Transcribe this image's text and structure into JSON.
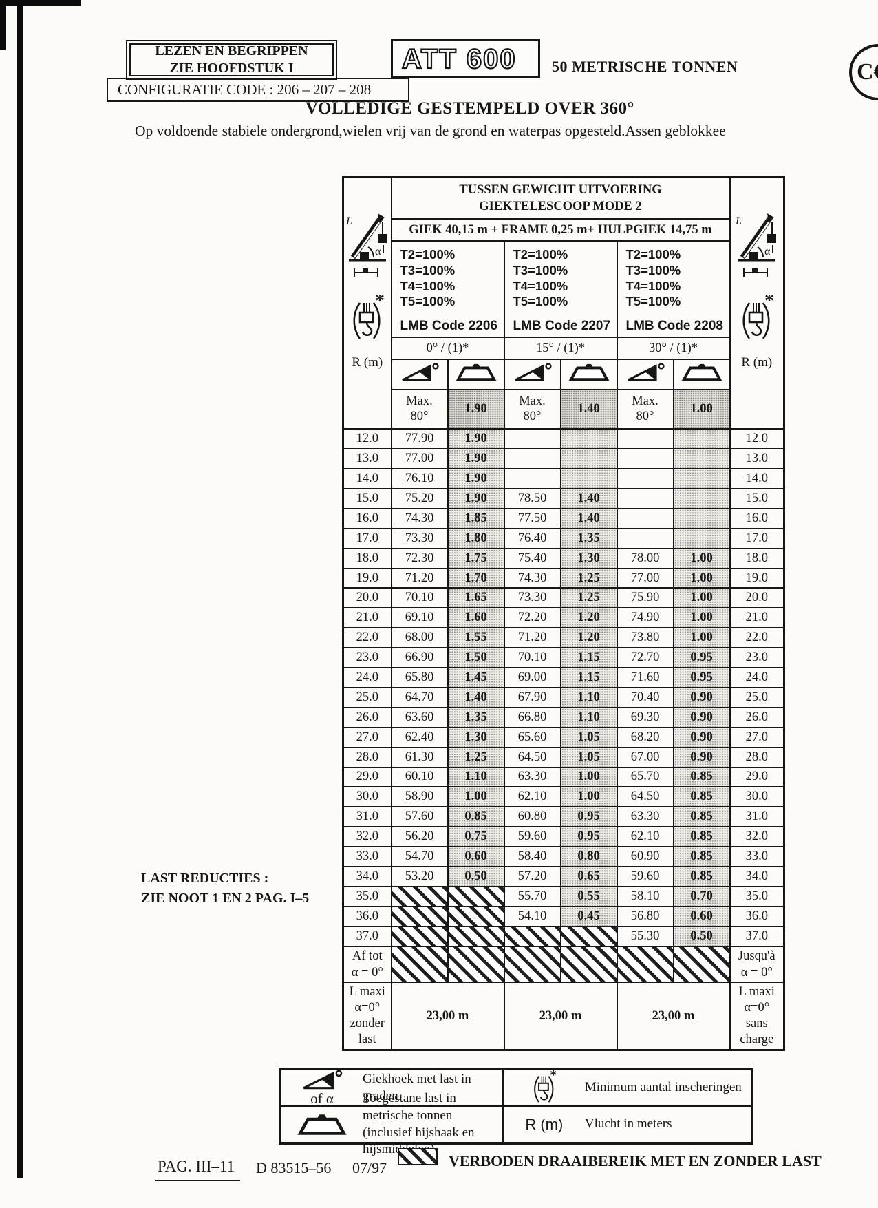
{
  "header": {
    "read_box": "LEZEN EN BEGRIPPEN\nZIE HOOFDSTUK I",
    "model": "ATT 600",
    "capacity": "50 METRISCHE TONNEN",
    "ce_mark": "C€",
    "config_code": "CONFIGURATIE CODE : 206 – 207 – 208",
    "title": "VOLLEDIGE GESTEMPELD OVER 360°",
    "subtitle": "Op voldoende stabiele ondergrond,wielen vrij van de grond en waterpas opgesteld.Assen geblokkee"
  },
  "table": {
    "title": "TUSSEN GEWICHT UITVOERING\nGIEKTELESCOOP MODE 2",
    "boom_config": "GIEK 40,15 m + FRAME 0,25 m+ HULPGIEK 14,75 m",
    "r_label": "R (m)",
    "max_label": "Max.\n80°",
    "groups": [
      {
        "telescope": "T2=100%\nT3=100%\nT4=100%\nT5=100%",
        "lmb": "LMB Code 2206",
        "angle": "0° / (1)*",
        "load_header": "1.90"
      },
      {
        "telescope": "T2=100%\nT3=100%\nT4=100%\nT5=100%",
        "lmb": "LMB Code 2207",
        "angle": "15° / (1)*",
        "load_header": "1.40"
      },
      {
        "telescope": "T2=100%\nT3=100%\nT4=100%\nT5=100%",
        "lmb": "LMB Code 2208",
        "angle": "30° / (1)*",
        "load_header": "1.00"
      }
    ],
    "rows": [
      {
        "r": "12.0",
        "c": [
          "77.90",
          "1.90",
          "",
          "",
          "",
          ""
        ]
      },
      {
        "r": "13.0",
        "c": [
          "77.00",
          "1.90",
          "",
          "",
          "",
          ""
        ]
      },
      {
        "r": "14.0",
        "c": [
          "76.10",
          "1.90",
          "",
          "",
          "",
          ""
        ]
      },
      {
        "r": "15.0",
        "c": [
          "75.20",
          "1.90",
          "78.50",
          "1.40",
          "",
          ""
        ]
      },
      {
        "r": "16.0",
        "c": [
          "74.30",
          "1.85",
          "77.50",
          "1.40",
          "",
          ""
        ]
      },
      {
        "r": "17.0",
        "c": [
          "73.30",
          "1.80",
          "76.40",
          "1.35",
          "",
          ""
        ]
      },
      {
        "r": "18.0",
        "c": [
          "72.30",
          "1.75",
          "75.40",
          "1.30",
          "78.00",
          "1.00"
        ]
      },
      {
        "r": "19.0",
        "c": [
          "71.20",
          "1.70",
          "74.30",
          "1.25",
          "77.00",
          "1.00"
        ]
      },
      {
        "r": "20.0",
        "c": [
          "70.10",
          "1.65",
          "73.30",
          "1.25",
          "75.90",
          "1.00"
        ]
      },
      {
        "r": "21.0",
        "c": [
          "69.10",
          "1.60",
          "72.20",
          "1.20",
          "74.90",
          "1.00"
        ]
      },
      {
        "r": "22.0",
        "c": [
          "68.00",
          "1.55",
          "71.20",
          "1.20",
          "73.80",
          "1.00"
        ]
      },
      {
        "r": "23.0",
        "c": [
          "66.90",
          "1.50",
          "70.10",
          "1.15",
          "72.70",
          "0.95"
        ]
      },
      {
        "r": "24.0",
        "c": [
          "65.80",
          "1.45",
          "69.00",
          "1.15",
          "71.60",
          "0.95"
        ]
      },
      {
        "r": "25.0",
        "c": [
          "64.70",
          "1.40",
          "67.90",
          "1.10",
          "70.40",
          "0.90"
        ]
      },
      {
        "r": "26.0",
        "c": [
          "63.60",
          "1.35",
          "66.80",
          "1.10",
          "69.30",
          "0.90"
        ]
      },
      {
        "r": "27.0",
        "c": [
          "62.40",
          "1.30",
          "65.60",
          "1.05",
          "68.20",
          "0.90"
        ]
      },
      {
        "r": "28.0",
        "c": [
          "61.30",
          "1.25",
          "64.50",
          "1.05",
          "67.00",
          "0.90"
        ]
      },
      {
        "r": "29.0",
        "c": [
          "60.10",
          "1.10",
          "63.30",
          "1.00",
          "65.70",
          "0.85"
        ]
      },
      {
        "r": "30.0",
        "c": [
          "58.90",
          "1.00",
          "62.10",
          "1.00",
          "64.50",
          "0.85"
        ]
      },
      {
        "r": "31.0",
        "c": [
          "57.60",
          "0.85",
          "60.80",
          "0.95",
          "63.30",
          "0.85"
        ]
      },
      {
        "r": "32.0",
        "c": [
          "56.20",
          "0.75",
          "59.60",
          "0.95",
          "62.10",
          "0.85"
        ]
      },
      {
        "r": "33.0",
        "c": [
          "54.70",
          "0.60",
          "58.40",
          "0.80",
          "60.90",
          "0.85"
        ]
      },
      {
        "r": "34.0",
        "c": [
          "53.20",
          "0.50",
          "57.20",
          "0.65",
          "59.60",
          "0.85"
        ]
      },
      {
        "r": "35.0",
        "c": [
          "HATCH",
          "HATCH",
          "55.70",
          "0.55",
          "58.10",
          "0.70"
        ]
      },
      {
        "r": "36.0",
        "c": [
          "HATCH",
          "HATCH",
          "54.10",
          "0.45",
          "56.80",
          "0.60"
        ]
      },
      {
        "r": "37.0",
        "c": [
          "HATCH",
          "HATCH",
          "HATCH",
          "HATCH",
          "55.30",
          "0.50"
        ]
      }
    ],
    "af_tot_label": "Af tot\nα = 0°",
    "jusqua_label": "Jusqu'à\nα = 0°",
    "lmaxi_left": "L maxi\nα=0°\nzonder\nlast",
    "lmaxi_right": "L maxi\nα=0°\nsans\ncharge",
    "lmaxi_values": [
      "23,00 m",
      "23,00 m",
      "23,00 m"
    ]
  },
  "notes": {
    "last_reducties": "LAST REDUCTIES :\nZIE NOOT 1 EN 2 PAG. I–5"
  },
  "legend": {
    "angle_sub": "of α",
    "angle_desc": "Giekhoek met last in graden.",
    "hook_desc": "Minimum aantal inscheringen",
    "load_desc": "Toegestane last in metrische tonnen\n(inclusief hijshaak en hijsmiddelen)",
    "r_label": "R (m)",
    "r_desc": "Vlucht in meters"
  },
  "footer": {
    "page": "PAG. III–11",
    "doc": "D 83515–56",
    "date": "07/97",
    "forbidden": "VERBODEN DRAAIBEREIK MET EN ZONDER LAST"
  }
}
